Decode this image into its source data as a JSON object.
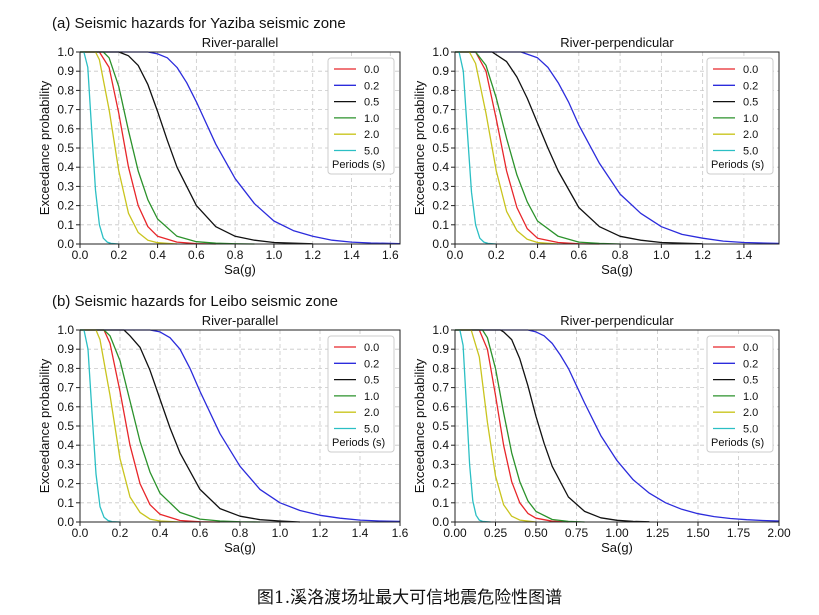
{
  "sections": [
    {
      "title": "(a) Seismic hazards for Yaziba seismic zone"
    },
    {
      "title": "(b) Seismic hazards for Leibo seismic zone"
    }
  ],
  "caption": "图1.溪洛渡场址最大可信地震危险性图谱",
  "colors": {
    "0.0": "#e8262a",
    "0.2": "#2c2cdc",
    "0.5": "#111111",
    "1.0": "#2b922b",
    "2.0": "#c9c41e",
    "5.0": "#2bbfc4"
  },
  "chart_data": [
    {
      "type": "line",
      "title": "River-parallel",
      "xlabel": "Sa(g)",
      "ylabel": "Exceedance probability",
      "xlim": [
        0,
        1.65
      ],
      "ylim": [
        0,
        1
      ],
      "xticks": [
        "0.0",
        "0.2",
        "0.4",
        "0.6",
        "0.8",
        "1.0",
        "1.2",
        "1.4",
        "1.6"
      ],
      "xtick_values": [
        0,
        0.2,
        0.4,
        0.6,
        0.8,
        1.0,
        1.2,
        1.4,
        1.6
      ],
      "yticks": [
        "0.0",
        "0.1",
        "0.2",
        "0.3",
        "0.4",
        "0.5",
        "0.6",
        "0.7",
        "0.8",
        "0.9",
        "1.0"
      ],
      "grid": true,
      "legend_title": "Periods (s)",
      "legend_position": "top-right",
      "series": [
        {
          "name": "0.0",
          "x": [
            0,
            0.1,
            0.15,
            0.2,
            0.25,
            0.3,
            0.35,
            0.4,
            0.5,
            0.6,
            0.7
          ],
          "y": [
            1,
            1,
            0.92,
            0.68,
            0.4,
            0.2,
            0.09,
            0.04,
            0.01,
            0.002,
            0
          ]
        },
        {
          "name": "0.2",
          "x": [
            0,
            0.35,
            0.4,
            0.45,
            0.5,
            0.55,
            0.6,
            0.7,
            0.8,
            0.9,
            1.0,
            1.1,
            1.2,
            1.3,
            1.4,
            1.5,
            1.65
          ],
          "y": [
            1,
            1,
            0.99,
            0.97,
            0.92,
            0.84,
            0.74,
            0.52,
            0.34,
            0.21,
            0.12,
            0.07,
            0.04,
            0.02,
            0.01,
            0.005,
            0.002
          ]
        },
        {
          "name": "0.5",
          "x": [
            0,
            0.2,
            0.25,
            0.3,
            0.35,
            0.4,
            0.45,
            0.5,
            0.6,
            0.7,
            0.8,
            0.9,
            1.0,
            1.2
          ],
          "y": [
            1,
            1,
            0.98,
            0.93,
            0.83,
            0.69,
            0.54,
            0.4,
            0.2,
            0.09,
            0.04,
            0.02,
            0.008,
            0.001
          ]
        },
        {
          "name": "1.0",
          "x": [
            0,
            0.12,
            0.15,
            0.2,
            0.25,
            0.3,
            0.35,
            0.4,
            0.5,
            0.6,
            0.7,
            0.8,
            0.9
          ],
          "y": [
            1,
            1,
            0.97,
            0.82,
            0.59,
            0.38,
            0.23,
            0.13,
            0.04,
            0.012,
            0.004,
            0.001,
            0
          ]
        },
        {
          "name": "2.0",
          "x": [
            0,
            0.08,
            0.1,
            0.15,
            0.2,
            0.25,
            0.3,
            0.35,
            0.4,
            0.5
          ],
          "y": [
            1,
            1,
            0.96,
            0.7,
            0.38,
            0.16,
            0.06,
            0.02,
            0.007,
            0
          ]
        },
        {
          "name": "5.0",
          "x": [
            0,
            0.02,
            0.04,
            0.06,
            0.08,
            0.1,
            0.12,
            0.14,
            0.16,
            0.2
          ],
          "y": [
            1,
            1,
            0.92,
            0.6,
            0.28,
            0.1,
            0.03,
            0.01,
            0.003,
            0
          ]
        }
      ]
    },
    {
      "type": "line",
      "title": "River-perpendicular",
      "xlabel": "Sa(g)",
      "ylabel": "Exceedance probability",
      "xlim": [
        0,
        1.57
      ],
      "ylim": [
        0,
        1
      ],
      "xticks": [
        "0.0",
        "0.2",
        "0.4",
        "0.6",
        "0.8",
        "1.0",
        "1.2",
        "1.4"
      ],
      "xtick_values": [
        0,
        0.2,
        0.4,
        0.6,
        0.8,
        1.0,
        1.2,
        1.4
      ],
      "yticks": [
        "0.0",
        "0.1",
        "0.2",
        "0.3",
        "0.4",
        "0.5",
        "0.6",
        "0.7",
        "0.8",
        "0.9",
        "1.0"
      ],
      "grid": true,
      "legend_title": "Periods (s)",
      "legend_position": "top-right",
      "series": [
        {
          "name": "0.0",
          "x": [
            0,
            0.1,
            0.15,
            0.2,
            0.25,
            0.3,
            0.35,
            0.4,
            0.5,
            0.6,
            0.7
          ],
          "y": [
            1,
            1,
            0.9,
            0.65,
            0.38,
            0.19,
            0.08,
            0.03,
            0.008,
            0.001,
            0
          ]
        },
        {
          "name": "0.2",
          "x": [
            0,
            0.32,
            0.4,
            0.45,
            0.5,
            0.55,
            0.6,
            0.7,
            0.8,
            0.9,
            1.0,
            1.1,
            1.2,
            1.3,
            1.4,
            1.57
          ],
          "y": [
            1,
            1,
            0.97,
            0.92,
            0.84,
            0.74,
            0.62,
            0.42,
            0.26,
            0.16,
            0.09,
            0.05,
            0.03,
            0.015,
            0.008,
            0.003
          ]
        },
        {
          "name": "0.5",
          "x": [
            0,
            0.18,
            0.25,
            0.3,
            0.35,
            0.4,
            0.45,
            0.5,
            0.6,
            0.7,
            0.8,
            0.9,
            1.0,
            1.2
          ],
          "y": [
            1,
            1,
            0.95,
            0.87,
            0.76,
            0.63,
            0.5,
            0.38,
            0.19,
            0.09,
            0.04,
            0.02,
            0.008,
            0.001
          ]
        },
        {
          "name": "1.0",
          "x": [
            0,
            0.1,
            0.15,
            0.2,
            0.25,
            0.3,
            0.35,
            0.4,
            0.5,
            0.6,
            0.7,
            0.8
          ],
          "y": [
            1,
            1,
            0.93,
            0.76,
            0.55,
            0.36,
            0.22,
            0.12,
            0.04,
            0.01,
            0.003,
            0
          ]
        },
        {
          "name": "2.0",
          "x": [
            0,
            0.07,
            0.1,
            0.15,
            0.2,
            0.25,
            0.3,
            0.35,
            0.4,
            0.5
          ],
          "y": [
            1,
            1,
            0.94,
            0.68,
            0.38,
            0.17,
            0.07,
            0.025,
            0.008,
            0
          ]
        },
        {
          "name": "5.0",
          "x": [
            0,
            0.02,
            0.04,
            0.06,
            0.08,
            0.1,
            0.12,
            0.14,
            0.16,
            0.2
          ],
          "y": [
            1,
            1,
            0.9,
            0.58,
            0.27,
            0.1,
            0.03,
            0.01,
            0.003,
            0
          ]
        }
      ]
    },
    {
      "type": "line",
      "title": "River-parallel",
      "xlabel": "Sa(g)",
      "ylabel": "Exceedance probability",
      "xlim": [
        0,
        1.6
      ],
      "ylim": [
        0,
        1
      ],
      "xticks": [
        "0.0",
        "0.2",
        "0.4",
        "0.6",
        "0.8",
        "1.0",
        "1.2",
        "1.4",
        "1.6"
      ],
      "xtick_values": [
        0,
        0.2,
        0.4,
        0.6,
        0.8,
        1.0,
        1.2,
        1.4,
        1.6
      ],
      "yticks": [
        "0.0",
        "0.1",
        "0.2",
        "0.3",
        "0.4",
        "0.5",
        "0.6",
        "0.7",
        "0.8",
        "0.9",
        "1.0"
      ],
      "grid": true,
      "legend_title": "Periods (s)",
      "legend_position": "top-right",
      "series": [
        {
          "name": "0.0",
          "x": [
            0,
            0.12,
            0.15,
            0.2,
            0.25,
            0.3,
            0.35,
            0.4,
            0.5,
            0.6,
            0.7
          ],
          "y": [
            1,
            1,
            0.93,
            0.68,
            0.4,
            0.2,
            0.09,
            0.04,
            0.008,
            0.001,
            0
          ]
        },
        {
          "name": "0.2",
          "x": [
            0,
            0.35,
            0.4,
            0.45,
            0.5,
            0.55,
            0.6,
            0.7,
            0.8,
            0.9,
            1.0,
            1.1,
            1.2,
            1.3,
            1.4,
            1.5,
            1.6
          ],
          "y": [
            1,
            1,
            0.99,
            0.96,
            0.9,
            0.8,
            0.68,
            0.46,
            0.29,
            0.17,
            0.1,
            0.06,
            0.035,
            0.02,
            0.01,
            0.005,
            0.003
          ]
        },
        {
          "name": "0.5",
          "x": [
            0,
            0.22,
            0.25,
            0.3,
            0.35,
            0.4,
            0.45,
            0.5,
            0.6,
            0.7,
            0.8,
            0.9,
            1.0,
            1.1
          ],
          "y": [
            1,
            1,
            0.97,
            0.91,
            0.79,
            0.64,
            0.49,
            0.36,
            0.17,
            0.07,
            0.03,
            0.012,
            0.005,
            0
          ]
        },
        {
          "name": "1.0",
          "x": [
            0,
            0.12,
            0.15,
            0.2,
            0.25,
            0.3,
            0.35,
            0.4,
            0.5,
            0.6,
            0.7,
            0.8,
            0.9
          ],
          "y": [
            1,
            1,
            0.97,
            0.84,
            0.63,
            0.42,
            0.26,
            0.15,
            0.05,
            0.015,
            0.005,
            0.001,
            0
          ]
        },
        {
          "name": "2.0",
          "x": [
            0,
            0.08,
            0.1,
            0.15,
            0.2,
            0.25,
            0.3,
            0.35,
            0.4,
            0.5
          ],
          "y": [
            1,
            1,
            0.95,
            0.66,
            0.33,
            0.13,
            0.05,
            0.015,
            0.005,
            0
          ]
        },
        {
          "name": "5.0",
          "x": [
            0,
            0.02,
            0.04,
            0.06,
            0.08,
            0.1,
            0.12,
            0.14,
            0.16,
            0.2
          ],
          "y": [
            1,
            1,
            0.9,
            0.57,
            0.25,
            0.08,
            0.025,
            0.008,
            0.002,
            0
          ]
        }
      ]
    },
    {
      "type": "line",
      "title": "River-perpendicular",
      "xlabel": "Sa(g)",
      "ylabel": "Exceedance probability",
      "xlim": [
        0,
        2.0
      ],
      "ylim": [
        0,
        1
      ],
      "xticks": [
        "0.00",
        "0.25",
        "0.50",
        "0.75",
        "1.00",
        "1.25",
        "1.50",
        "1.75",
        "2.00"
      ],
      "xtick_values": [
        0,
        0.25,
        0.5,
        0.75,
        1.0,
        1.25,
        1.5,
        1.75,
        2.0
      ],
      "yticks": [
        "0.0",
        "0.1",
        "0.2",
        "0.3",
        "0.4",
        "0.5",
        "0.6",
        "0.7",
        "0.8",
        "0.9",
        "1.0"
      ],
      "grid": true,
      "legend_title": "Periods (s)",
      "legend_position": "top-right",
      "series": [
        {
          "name": "0.0",
          "x": [
            0,
            0.15,
            0.2,
            0.25,
            0.3,
            0.35,
            0.4,
            0.45,
            0.5,
            0.6,
            0.7
          ],
          "y": [
            1,
            1,
            0.9,
            0.66,
            0.4,
            0.21,
            0.1,
            0.045,
            0.02,
            0.004,
            0
          ]
        },
        {
          "name": "0.2",
          "x": [
            0,
            0.45,
            0.5,
            0.55,
            0.6,
            0.65,
            0.7,
            0.75,
            0.8,
            0.9,
            1.0,
            1.1,
            1.2,
            1.3,
            1.4,
            1.5,
            1.6,
            1.7,
            1.8,
            1.9,
            2.0
          ],
          "y": [
            1,
            1,
            0.99,
            0.97,
            0.93,
            0.87,
            0.8,
            0.71,
            0.62,
            0.45,
            0.32,
            0.22,
            0.15,
            0.1,
            0.066,
            0.043,
            0.028,
            0.018,
            0.012,
            0.008,
            0.005
          ]
        },
        {
          "name": "0.5",
          "x": [
            0,
            0.28,
            0.3,
            0.35,
            0.4,
            0.45,
            0.5,
            0.55,
            0.6,
            0.7,
            0.8,
            0.9,
            1.0,
            1.1,
            1.2
          ],
          "y": [
            1,
            1,
            0.99,
            0.95,
            0.85,
            0.71,
            0.55,
            0.41,
            0.29,
            0.13,
            0.055,
            0.022,
            0.009,
            0.003,
            0.001
          ]
        },
        {
          "name": "1.0",
          "x": [
            0,
            0.17,
            0.2,
            0.25,
            0.3,
            0.35,
            0.4,
            0.45,
            0.5,
            0.6,
            0.7,
            0.8
          ],
          "y": [
            1,
            1,
            0.96,
            0.8,
            0.57,
            0.36,
            0.21,
            0.11,
            0.055,
            0.013,
            0.003,
            0
          ]
        },
        {
          "name": "2.0",
          "x": [
            0,
            0.1,
            0.15,
            0.2,
            0.25,
            0.3,
            0.35,
            0.4,
            0.5
          ],
          "y": [
            1,
            1,
            0.86,
            0.52,
            0.24,
            0.09,
            0.03,
            0.01,
            0
          ]
        },
        {
          "name": "5.0",
          "x": [
            0,
            0.03,
            0.05,
            0.07,
            0.09,
            0.11,
            0.13,
            0.15,
            0.17,
            0.22
          ],
          "y": [
            1,
            1,
            0.92,
            0.62,
            0.3,
            0.11,
            0.035,
            0.01,
            0.003,
            0
          ]
        }
      ]
    }
  ]
}
